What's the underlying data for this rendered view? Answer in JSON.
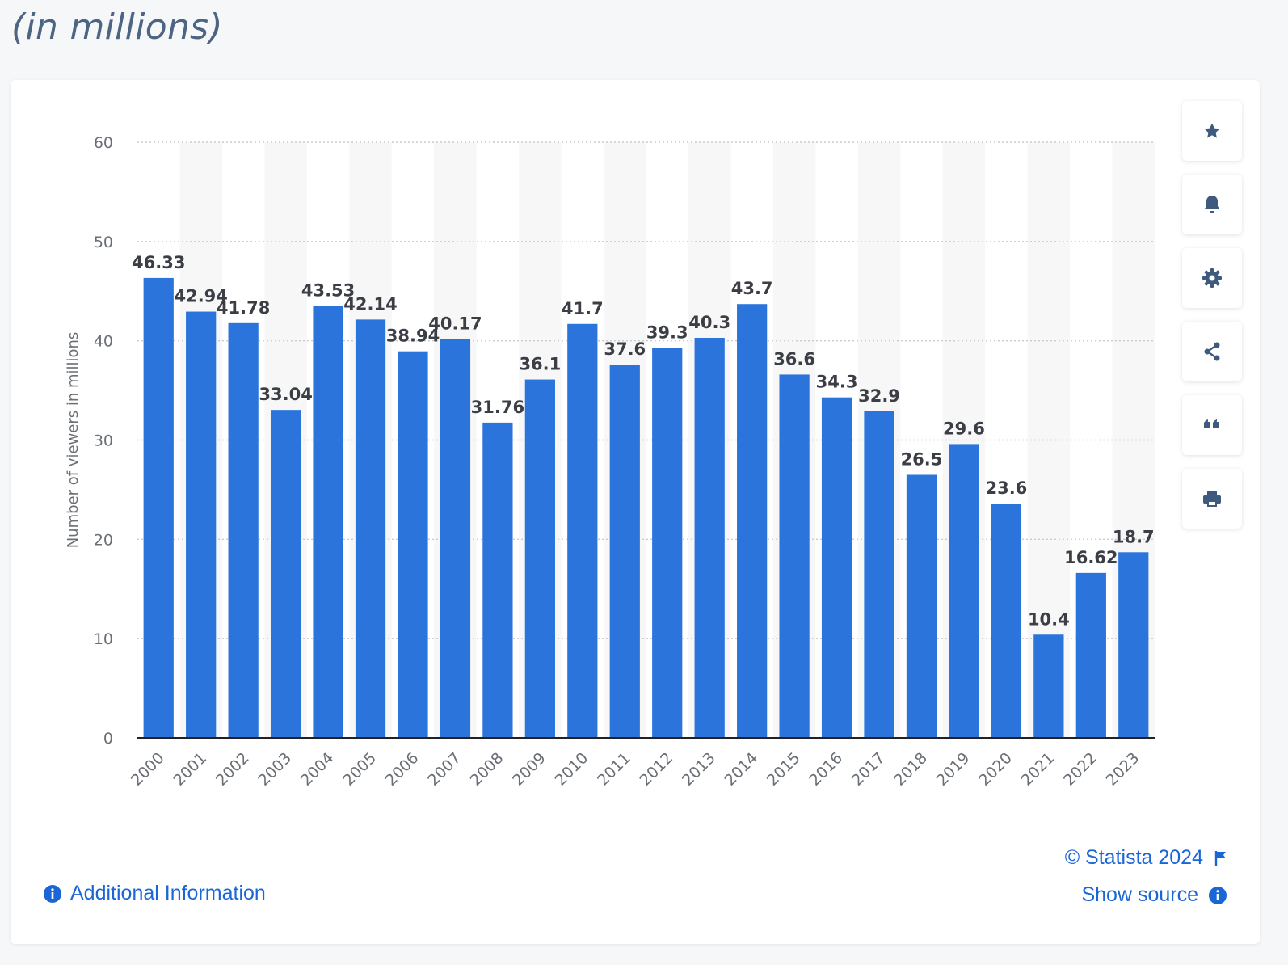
{
  "subtitle": "(in millions)",
  "colors": {
    "bar": "#2a74dc",
    "label": "#3b3f45",
    "axis_text": "#6b6f75",
    "grid": "#c9ccd1",
    "stripe": "#f7f7f7",
    "link": "#1a66d6",
    "icon": "#3e5a7e"
  },
  "tools": [
    {
      "name": "favorite",
      "icon": "star-icon"
    },
    {
      "name": "notify",
      "icon": "bell-icon"
    },
    {
      "name": "settings",
      "icon": "gear-icon"
    },
    {
      "name": "share",
      "icon": "share-icon"
    },
    {
      "name": "cite",
      "icon": "quote-icon"
    },
    {
      "name": "print",
      "icon": "printer-icon"
    }
  ],
  "footer": {
    "additional_info": "Additional Information",
    "credit": "© Statista 2024",
    "show_source": "Show source"
  },
  "chart_data": {
    "type": "bar",
    "title": "",
    "xlabel": "",
    "ylabel": "Number of viewers in millions",
    "ylim": [
      0,
      60
    ],
    "yticks": [
      0,
      10,
      20,
      30,
      40,
      50,
      60
    ],
    "grid": true,
    "categories": [
      "2000",
      "2001",
      "2002",
      "2003",
      "2004",
      "2005",
      "2006",
      "2007",
      "2008",
      "2009",
      "2010",
      "2011",
      "2012",
      "2013",
      "2014",
      "2015",
      "2016",
      "2017",
      "2018",
      "2019",
      "2020",
      "2021",
      "2022",
      "2023"
    ],
    "values": [
      46.33,
      42.94,
      41.78,
      33.04,
      43.53,
      42.14,
      38.94,
      40.17,
      31.76,
      36.1,
      41.7,
      37.6,
      39.3,
      40.3,
      43.7,
      36.6,
      34.3,
      32.9,
      26.5,
      29.6,
      23.6,
      10.4,
      16.62,
      18.7
    ],
    "labels": [
      "46.33",
      "42.94",
      "41.78",
      "33.04",
      "43.53",
      "42.14",
      "38.94",
      "40.17",
      "31.76",
      "36.1",
      "41.7",
      "37.6",
      "39.3",
      "40.3",
      "43.7",
      "36.6",
      "34.3",
      "32.9",
      "26.5",
      "29.6",
      "23.6",
      "10.4",
      "16.62",
      "18.7"
    ]
  }
}
